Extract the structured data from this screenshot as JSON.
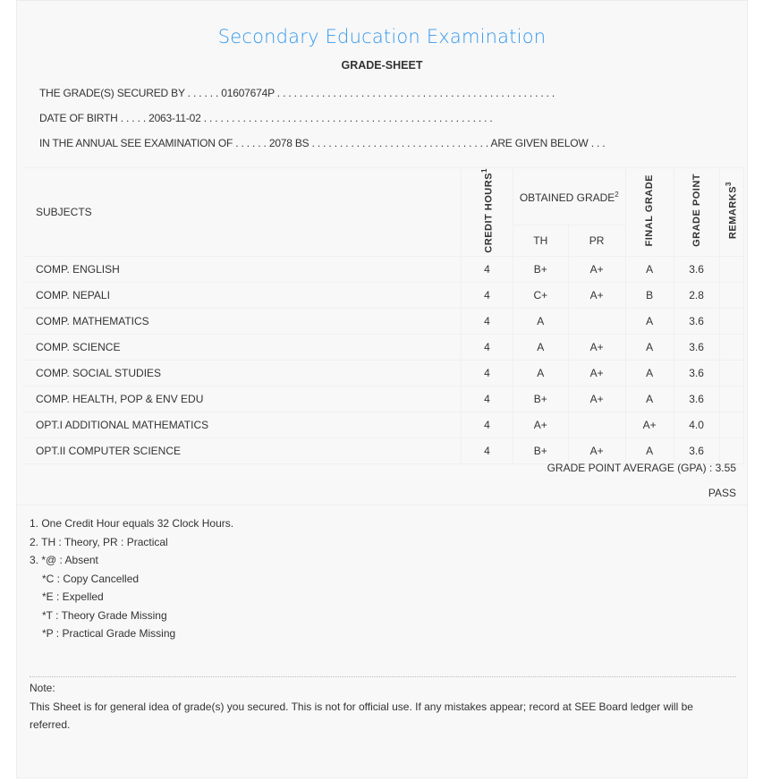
{
  "header": {
    "title": "Secondary Education Examination",
    "subtitle": "GRADE-SHEET"
  },
  "info": {
    "secured_by_label": "THE GRADE(S) SECURED BY . . . . . . ",
    "symbol_no": "01607674P",
    "secured_by_tail": " . . . . . . . . . . . . . . . . . . . . . . . . . . . . . . . . . . . . . . . . . . . . . . . . . .",
    "dob_label": "DATE OF BIRTH . . . . . ",
    "dob": "2063-11-02",
    "dob_tail": " . . . . . . . . . . . . . . . . . . . . . . . . . . . . . . . . . . . . . . . . . . . . . . . . . . . .",
    "exam_label": "IN THE ANNUAL SEE EXAMINATION OF . . . . . . ",
    "exam_year": "2078 BS",
    "exam_tail": " . . . . . . . . . . . . . . . . . . . . . . . . . . . . . . . . ARE GIVEN BELOW . . ."
  },
  "table": {
    "headers": {
      "subjects": "SUBJECTS",
      "credit": "CREDIT HOURS",
      "credit_sup": "1",
      "obtained": "OBTAINED GRADE",
      "obtained_sup": "2",
      "th": "TH",
      "pr": "PR",
      "final": "FINAL GRADE",
      "point": "GRADE POINT",
      "remarks": "REMARKS",
      "remarks_sup": "3"
    },
    "rows": [
      {
        "subject": "COMP. ENGLISH",
        "credit": "4",
        "th": "B+",
        "pr": "A+",
        "final": "A",
        "point": "3.6",
        "remarks": ""
      },
      {
        "subject": "COMP. NEPALI",
        "credit": "4",
        "th": "C+",
        "pr": "A+",
        "final": "B",
        "point": "2.8",
        "remarks": ""
      },
      {
        "subject": "COMP. MATHEMATICS",
        "credit": "4",
        "th": "A",
        "pr": "",
        "final": "A",
        "point": "3.6",
        "remarks": ""
      },
      {
        "subject": "COMP. SCIENCE",
        "credit": "4",
        "th": "A",
        "pr": "A+",
        "final": "A",
        "point": "3.6",
        "remarks": ""
      },
      {
        "subject": "COMP. SOCIAL STUDIES",
        "credit": "4",
        "th": "A",
        "pr": "A+",
        "final": "A",
        "point": "3.6",
        "remarks": ""
      },
      {
        "subject": "COMP. HEALTH, POP & ENV EDU",
        "credit": "4",
        "th": "B+",
        "pr": "A+",
        "final": "A",
        "point": "3.6",
        "remarks": ""
      },
      {
        "subject": "OPT.I ADDITIONAL MATHEMATICS",
        "credit": "4",
        "th": "A+",
        "pr": "",
        "final": "A+",
        "point": "4.0",
        "remarks": ""
      },
      {
        "subject": "OPT.II COMPUTER SCIENCE",
        "credit": "4",
        "th": "B+",
        "pr": "A+",
        "final": "A",
        "point": "3.6",
        "remarks": ""
      }
    ]
  },
  "result": {
    "gpa": "GRADE POINT AVERAGE (GPA) : 3.55",
    "status": "PASS"
  },
  "footnotes": [
    "1. One Credit Hour equals 32 Clock Hours.",
    "2. TH : Theory, PR : Practical",
    "3. *@ : Absent",
    "*C : Copy Cancelled",
    "*E : Expelled",
    "*T : Theory Grade Missing",
    "*P : Practical Grade Missing"
  ],
  "note": {
    "label": "Note:",
    "text": "This Sheet is for general idea of grade(s) you secured. This is not for official use. If any mistakes appear; record at SEE Board ledger will be referred."
  }
}
